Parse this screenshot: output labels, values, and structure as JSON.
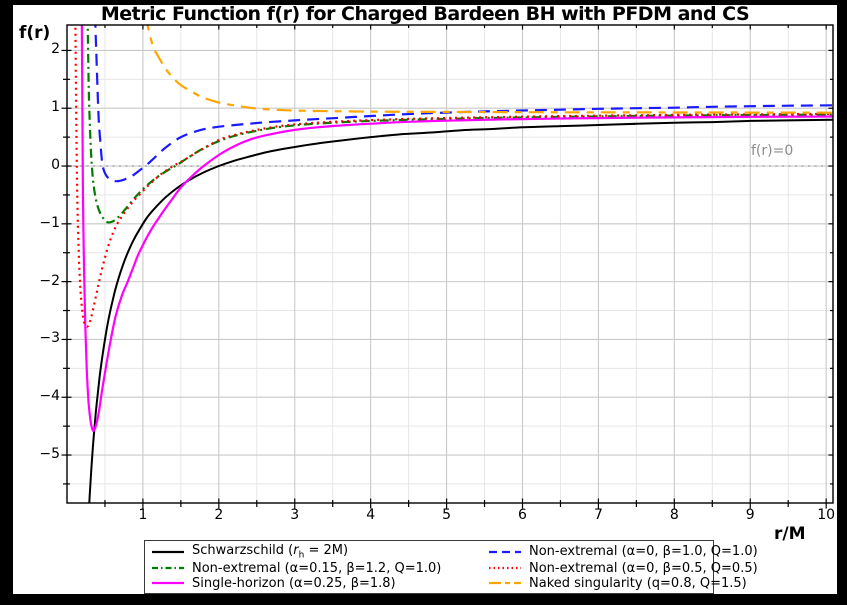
{
  "chart_data": {
    "type": "line",
    "title": "Metric Function f(r) for Charged Bardeen BH with PFDM and CS",
    "xlabel": "r/M",
    "ylabel": "f(r)",
    "xlim": [
      0,
      10.09
    ],
    "ylim": [
      -5.83,
      2.44
    ],
    "grid": true,
    "legend_position": "bottom",
    "x_major_ticks": [
      1,
      2,
      3,
      4,
      5,
      6,
      7,
      8,
      9,
      10
    ],
    "x_tick_labels": [
      "1",
      "2",
      "3",
      "4",
      "5",
      "6",
      "7",
      "8",
      "9",
      "10"
    ],
    "x_minor_ticks": [
      0.5,
      1.5,
      2.5,
      3.5,
      4.5,
      5.5,
      6.5,
      7.5,
      8.5,
      9.5
    ],
    "y_major_ticks": [
      2,
      1,
      0,
      -1,
      -2,
      -3,
      -4,
      -5
    ],
    "y_tick_labels": [
      "2",
      "1",
      "0",
      "−1",
      "−2",
      "−3",
      "−4",
      "−5"
    ],
    "y_minor_ticks": [
      1.5,
      0.5,
      -0.5,
      -1.5,
      -2.5,
      -3.5,
      -4.5,
      -5.5
    ],
    "hline": {
      "y": 0,
      "label": "f(r)=0",
      "color": "#999999"
    },
    "frame_color": "#000000",
    "grid_major_color": "#c9c9c9",
    "grid_minor_color": "#e6e6e6",
    "series": [
      {
        "id": "schwarzschild",
        "label_pre": "Schwarzschild (",
        "label_italic": "r",
        "label_sub": "h",
        "label_post": " = 2M)",
        "color": "#000000",
        "dash": "",
        "legend_dash": "",
        "width": 2.0,
        "points": [
          [
            0.26,
            -6.69
          ],
          [
            0.28,
            -6.14
          ],
          [
            0.3,
            -5.67
          ],
          [
            0.32,
            -5.25
          ],
          [
            0.34,
            -4.88
          ],
          [
            0.36,
            -4.56
          ],
          [
            0.38,
            -4.26
          ],
          [
            0.4,
            -4.0
          ],
          [
            0.43,
            -3.65
          ],
          [
            0.46,
            -3.35
          ],
          [
            0.5,
            -3.0
          ],
          [
            0.54,
            -2.7
          ],
          [
            0.58,
            -2.45
          ],
          [
            0.63,
            -2.17
          ],
          [
            0.68,
            -1.94
          ],
          [
            0.74,
            -1.7
          ],
          [
            0.8,
            -1.5
          ],
          [
            0.87,
            -1.3
          ],
          [
            0.95,
            -1.11
          ],
          [
            1.05,
            -0.9
          ],
          [
            1.15,
            -0.74
          ],
          [
            1.3,
            -0.54
          ],
          [
            1.45,
            -0.38
          ],
          [
            1.6,
            -0.25
          ],
          [
            1.8,
            -0.11
          ],
          [
            2.0,
            0.0
          ],
          [
            2.2,
            0.09
          ],
          [
            2.45,
            0.18
          ],
          [
            2.7,
            0.26
          ],
          [
            3.0,
            0.33
          ],
          [
            3.3,
            0.39
          ],
          [
            3.6,
            0.44
          ],
          [
            4.0,
            0.5
          ],
          [
            4.4,
            0.55
          ],
          [
            4.8,
            0.58
          ],
          [
            5.2,
            0.62
          ],
          [
            5.6,
            0.64
          ],
          [
            6.0,
            0.67
          ],
          [
            6.5,
            0.69
          ],
          [
            7.0,
            0.71
          ],
          [
            7.5,
            0.73
          ],
          [
            8.0,
            0.75
          ],
          [
            8.5,
            0.76
          ],
          [
            9.0,
            0.78
          ],
          [
            9.5,
            0.79
          ],
          [
            10.09,
            0.8
          ]
        ]
      },
      {
        "id": "non-extremal-a015",
        "label_pre": "Non-extremal (α=0.15, β=1.2, Q=1.0)",
        "label_italic": "",
        "label_sub": "",
        "label_post": "",
        "color": "#007d00",
        "dash": "9 4 2 4",
        "legend_dash": "6 3 1.5 3",
        "width": 2.2,
        "points": [
          [
            0.27,
            2.6
          ],
          [
            0.275,
            2.2
          ],
          [
            0.28,
            1.8
          ],
          [
            0.285,
            1.45
          ],
          [
            0.29,
            1.15
          ],
          [
            0.3,
            0.75
          ],
          [
            0.31,
            0.42
          ],
          [
            0.32,
            0.15
          ],
          [
            0.33,
            -0.05
          ],
          [
            0.35,
            -0.33
          ],
          [
            0.38,
            -0.57
          ],
          [
            0.42,
            -0.76
          ],
          [
            0.47,
            -0.89
          ],
          [
            0.53,
            -0.97
          ],
          [
            0.6,
            -0.96
          ],
          [
            0.68,
            -0.88
          ],
          [
            0.78,
            -0.73
          ],
          [
            0.9,
            -0.54
          ],
          [
            1.0,
            -0.4
          ],
          [
            1.12,
            -0.26
          ],
          [
            1.28,
            -0.11
          ],
          [
            1.45,
            0.02
          ],
          [
            1.6,
            0.15
          ],
          [
            1.8,
            0.31
          ],
          [
            2.0,
            0.43
          ],
          [
            2.2,
            0.52
          ],
          [
            2.5,
            0.61
          ],
          [
            2.8,
            0.675
          ],
          [
            3.1,
            0.715
          ],
          [
            3.5,
            0.75
          ],
          [
            4.0,
            0.78
          ],
          [
            4.5,
            0.8
          ],
          [
            5.0,
            0.816
          ],
          [
            5.5,
            0.83
          ],
          [
            6.0,
            0.84
          ],
          [
            6.5,
            0.85
          ],
          [
            7.0,
            0.858
          ],
          [
            7.5,
            0.865
          ],
          [
            8.0,
            0.872
          ],
          [
            8.5,
            0.877
          ],
          [
            9.0,
            0.882
          ],
          [
            9.5,
            0.886
          ],
          [
            10.09,
            0.89
          ]
        ]
      },
      {
        "id": "single-horizon",
        "label_pre": "Single-horizon (α=0.25, β=1.8)",
        "label_italic": "",
        "label_sub": "",
        "label_post": "",
        "color": "#ff00ff",
        "dash": "",
        "legend_dash": "",
        "width": 2.2,
        "points": [
          [
            0.195,
            2.6
          ],
          [
            0.198,
            2.0
          ],
          [
            0.202,
            1.2
          ],
          [
            0.206,
            0.4
          ],
          [
            0.21,
            -0.4
          ],
          [
            0.216,
            -1.1
          ],
          [
            0.226,
            -1.9
          ],
          [
            0.24,
            -2.7
          ],
          [
            0.26,
            -3.5
          ],
          [
            0.285,
            -4.1
          ],
          [
            0.315,
            -4.45
          ],
          [
            0.345,
            -4.58
          ],
          [
            0.38,
            -4.5
          ],
          [
            0.42,
            -4.25
          ],
          [
            0.46,
            -3.9
          ],
          [
            0.51,
            -3.5
          ],
          [
            0.57,
            -3.05
          ],
          [
            0.64,
            -2.6
          ],
          [
            0.72,
            -2.25
          ],
          [
            0.8,
            -2.0
          ],
          [
            0.88,
            -1.73
          ],
          [
            0.95,
            -1.5
          ],
          [
            1.1,
            -1.12
          ],
          [
            1.25,
            -0.82
          ],
          [
            1.38,
            -0.58
          ],
          [
            1.5,
            -0.37
          ],
          [
            1.65,
            -0.17
          ],
          [
            1.8,
            0.0
          ],
          [
            2.0,
            0.19
          ],
          [
            2.2,
            0.34
          ],
          [
            2.45,
            0.475
          ],
          [
            2.7,
            0.555
          ],
          [
            3.0,
            0.625
          ],
          [
            3.3,
            0.67
          ],
          [
            3.7,
            0.71
          ],
          [
            4.1,
            0.74
          ],
          [
            4.5,
            0.765
          ],
          [
            5.0,
            0.785
          ],
          [
            5.5,
            0.8
          ],
          [
            6.0,
            0.812
          ],
          [
            6.5,
            0.822
          ],
          [
            7.0,
            0.83
          ],
          [
            7.5,
            0.837
          ],
          [
            8.0,
            0.842
          ],
          [
            8.5,
            0.847
          ],
          [
            9.0,
            0.851
          ],
          [
            9.5,
            0.854
          ],
          [
            10.09,
            0.857
          ]
        ]
      },
      {
        "id": "non-extremal-b10",
        "label_pre": "Non-extremal (α=0, β=1.0, Q=1.0)",
        "label_italic": "",
        "label_sub": "",
        "label_post": "",
        "color": "#1a1aff",
        "dash": "12 7",
        "legend_dash": "8 5",
        "width": 2.2,
        "points": [
          [
            0.37,
            2.6
          ],
          [
            0.38,
            2.2
          ],
          [
            0.39,
            1.8
          ],
          [
            0.4,
            1.4
          ],
          [
            0.41,
            1.05
          ],
          [
            0.42,
            0.75
          ],
          [
            0.44,
            0.4
          ],
          [
            0.46,
            0.1
          ],
          [
            0.48,
            -0.05
          ],
          [
            0.52,
            -0.17
          ],
          [
            0.57,
            -0.23
          ],
          [
            0.63,
            -0.26
          ],
          [
            0.7,
            -0.255
          ],
          [
            0.78,
            -0.22
          ],
          [
            0.87,
            -0.16
          ],
          [
            0.96,
            -0.07
          ],
          [
            1.05,
            0.02
          ],
          [
            1.15,
            0.14
          ],
          [
            1.3,
            0.32
          ],
          [
            1.5,
            0.5
          ],
          [
            1.75,
            0.62
          ],
          [
            2.0,
            0.68
          ],
          [
            2.3,
            0.72
          ],
          [
            2.6,
            0.755
          ],
          [
            3.0,
            0.79
          ],
          [
            3.4,
            0.82
          ],
          [
            3.8,
            0.85
          ],
          [
            4.2,
            0.88
          ],
          [
            4.6,
            0.905
          ],
          [
            5.0,
            0.925
          ],
          [
            5.5,
            0.945
          ],
          [
            6.0,
            0.96
          ],
          [
            6.5,
            0.975
          ],
          [
            7.0,
            0.99
          ],
          [
            7.5,
            1.0
          ],
          [
            8.0,
            1.01
          ],
          [
            8.5,
            1.025
          ],
          [
            9.0,
            1.035
          ],
          [
            9.5,
            1.043
          ],
          [
            10.09,
            1.05
          ]
        ]
      },
      {
        "id": "non-extremal-b05",
        "label_pre": "Non-extremal (α=0, β=0.5, Q=0.5)",
        "label_italic": "",
        "label_sub": "",
        "label_post": "",
        "color": "#ff0000",
        "dash": "2 4",
        "legend_dash": "1.5 3",
        "width": 2.2,
        "points": [
          [
            0.11,
            2.6
          ],
          [
            0.113,
            2.1
          ],
          [
            0.116,
            1.6
          ],
          [
            0.12,
            1.1
          ],
          [
            0.124,
            0.6
          ],
          [
            0.128,
            0.15
          ],
          [
            0.133,
            -0.3
          ],
          [
            0.14,
            -0.8
          ],
          [
            0.15,
            -1.3
          ],
          [
            0.162,
            -1.75
          ],
          [
            0.178,
            -2.15
          ],
          [
            0.2,
            -2.5
          ],
          [
            0.225,
            -2.7
          ],
          [
            0.265,
            -2.78
          ],
          [
            0.3,
            -2.7
          ],
          [
            0.34,
            -2.5
          ],
          [
            0.39,
            -2.2
          ],
          [
            0.44,
            -1.9
          ],
          [
            0.5,
            -1.58
          ],
          [
            0.57,
            -1.28
          ],
          [
            0.65,
            -1.03
          ],
          [
            0.75,
            -0.82
          ],
          [
            0.86,
            -0.63
          ],
          [
            0.98,
            -0.46
          ],
          [
            1.1,
            -0.3
          ],
          [
            1.25,
            -0.13
          ],
          [
            1.4,
            0.0
          ],
          [
            1.55,
            0.11
          ],
          [
            1.7,
            0.23
          ],
          [
            1.85,
            0.34
          ],
          [
            2.0,
            0.45
          ],
          [
            2.2,
            0.535
          ],
          [
            2.5,
            0.625
          ],
          [
            2.8,
            0.69
          ],
          [
            3.1,
            0.73
          ],
          [
            3.5,
            0.765
          ],
          [
            4.0,
            0.795
          ],
          [
            4.5,
            0.815
          ],
          [
            5.0,
            0.83
          ],
          [
            5.5,
            0.843
          ],
          [
            6.0,
            0.854
          ],
          [
            6.5,
            0.863
          ],
          [
            7.0,
            0.871
          ],
          [
            7.5,
            0.878
          ],
          [
            8.0,
            0.884
          ],
          [
            8.5,
            0.889
          ],
          [
            9.0,
            0.894
          ],
          [
            9.5,
            0.898
          ],
          [
            10.09,
            0.902
          ]
        ]
      },
      {
        "id": "naked-singularity",
        "label_pre": "Naked singularity (q=0.8, Q=1.5)",
        "label_italic": "",
        "label_sub": "",
        "label_post": "",
        "color": "#ffa500",
        "dash": "15 7 7 7",
        "legend_dash": "12 4 5 4",
        "width": 2.2,
        "points": [
          [
            1.04,
            2.6
          ],
          [
            1.06,
            2.45
          ],
          [
            1.1,
            2.22
          ],
          [
            1.15,
            2.02
          ],
          [
            1.2,
            1.9
          ],
          [
            1.3,
            1.68
          ],
          [
            1.4,
            1.52
          ],
          [
            1.5,
            1.4
          ],
          [
            1.65,
            1.28
          ],
          [
            1.8,
            1.18
          ],
          [
            2.0,
            1.1
          ],
          [
            2.2,
            1.05
          ],
          [
            2.4,
            1.01
          ],
          [
            2.6,
            0.985
          ],
          [
            2.8,
            0.97
          ],
          [
            3.0,
            0.96
          ],
          [
            3.25,
            0.952
          ],
          [
            3.5,
            0.948
          ],
          [
            4.0,
            0.942
          ],
          [
            4.5,
            0.938
          ],
          [
            5.0,
            0.936
          ],
          [
            5.5,
            0.934
          ],
          [
            6.0,
            0.932
          ],
          [
            6.5,
            0.93
          ],
          [
            7.0,
            0.929
          ],
          [
            7.5,
            0.928
          ],
          [
            8.0,
            0.927
          ],
          [
            8.5,
            0.926
          ],
          [
            9.0,
            0.925
          ],
          [
            9.5,
            0.924
          ],
          [
            10.09,
            0.923
          ]
        ]
      }
    ]
  }
}
